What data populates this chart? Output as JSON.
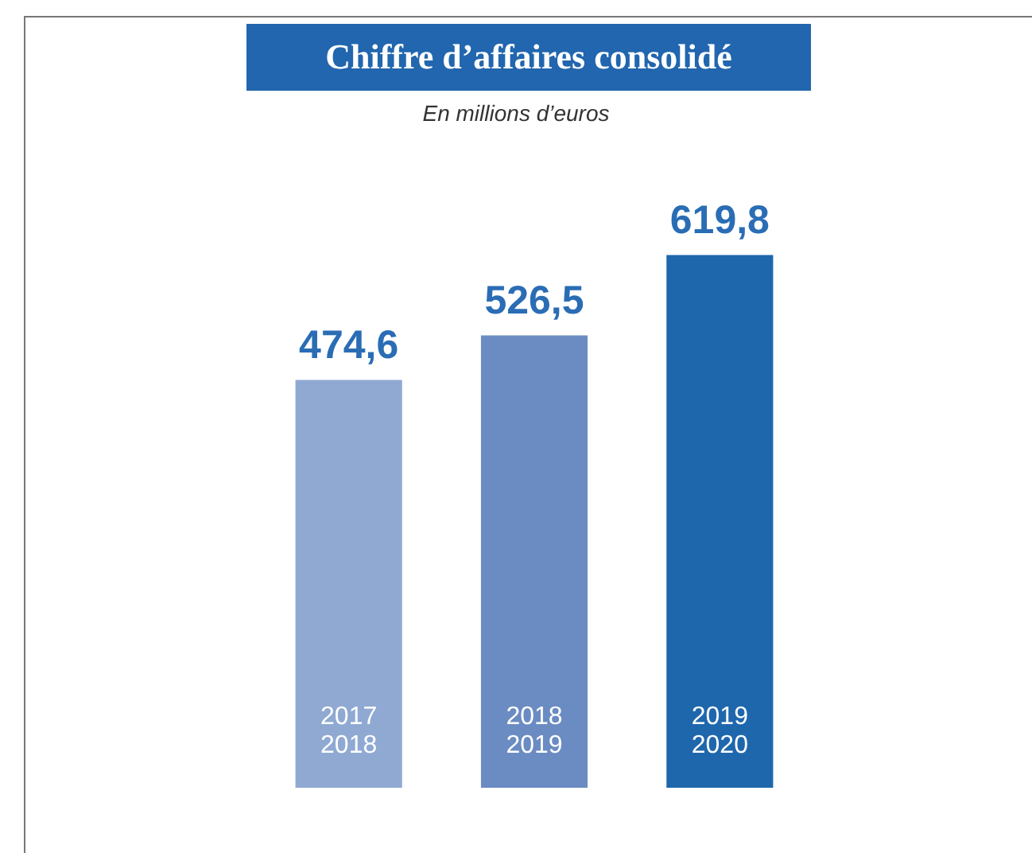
{
  "chart_data": {
    "type": "bar",
    "title": "Chiffre d’affaires consolidé",
    "subtitle": "En millions d’euros",
    "categories": [
      "2017\n2018",
      "2018\n2019",
      "2019\n2020"
    ],
    "values": [
      474.6,
      526.5,
      619.8
    ],
    "colors": [
      "#8fa9d2",
      "#6b8cc2",
      "#1f67ad"
    ],
    "value_labels": [
      "474,6",
      "526,5",
      "619,8"
    ],
    "legend": false,
    "tick_labels": false
  }
}
